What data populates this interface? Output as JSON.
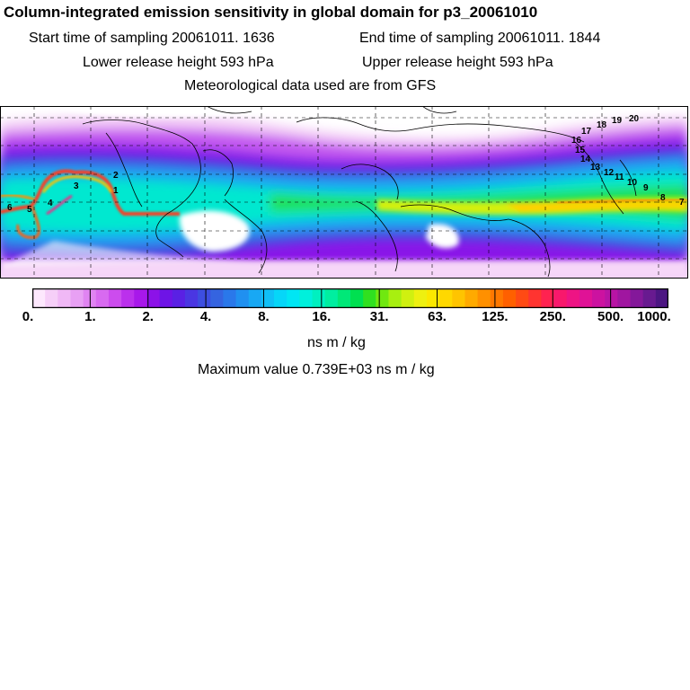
{
  "header": {
    "title": "Column-integrated emission sensitivity in global domain for p3_20061010",
    "start_time": "Start time of sampling 20061011.  1636",
    "end_time": "End time of sampling 20061011.  1844",
    "lower_release": "Lower release height  593 hPa",
    "upper_release": "Upper release height  593 hPa",
    "met_data": "Meteorological data used are from GFS"
  },
  "map": {
    "trajectory_labels": [
      "1",
      "2",
      "3",
      "4",
      "5",
      "6",
      "7",
      "8",
      "9",
      "10",
      "11",
      "12",
      "13",
      "14",
      "15",
      "16",
      "17",
      "18",
      "19",
      "20"
    ]
  },
  "colorbar": {
    "tick_labels": [
      "0.",
      "1.",
      "2.",
      "4.",
      "8.",
      "16.",
      "31.",
      "63.",
      "125.",
      "250.",
      "500.",
      "1000."
    ],
    "colors": [
      "#fde8fd",
      "#f6cff8",
      "#f0b8f6",
      "#e8a0f4",
      "#e084f2",
      "#d86af0",
      "#cc4cee",
      "#bb30ec",
      "#a818ea",
      "#8c12e8",
      "#6e14e6",
      "#5a20e4",
      "#4a36e2",
      "#3d4ee0",
      "#3564e0",
      "#2a78ea",
      "#2090f0",
      "#18a8f4",
      "#10c0f6",
      "#06d6f8",
      "#00e6f4",
      "#00f0dc",
      "#00f0c0",
      "#00eea0",
      "#00e878",
      "#00e050",
      "#30e020",
      "#70e810",
      "#a8ef10",
      "#d0f010",
      "#eef010",
      "#fbe800",
      "#ffd800",
      "#ffc400",
      "#ffaa00",
      "#ff9000",
      "#ff7800",
      "#ff6000",
      "#ff4a14",
      "#ff3430",
      "#ff2250",
      "#f8186c",
      "#ee1484",
      "#e01296",
      "#cc12a0",
      "#b814a4",
      "#a016a0",
      "#84189a",
      "#681a90",
      "#4c1682"
    ],
    "units": "ns m / kg"
  },
  "maximum": "Maximum value  0.739E+03 ns m / kg"
}
